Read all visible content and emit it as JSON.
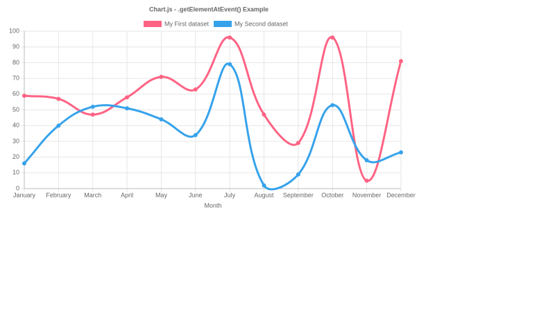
{
  "chart_data": {
    "type": "line",
    "title": "Chart.js - .getElementAtEvent() Example",
    "x_label": "Month",
    "categories": [
      "January",
      "February",
      "March",
      "April",
      "May",
      "June",
      "July",
      "August",
      "September",
      "October",
      "November",
      "December"
    ],
    "series": [
      {
        "name": "My First dataset",
        "color": "#ff6384",
        "values": [
          59,
          57,
          47,
          58,
          71,
          63,
          96,
          47,
          29,
          96,
          5,
          81
        ]
      },
      {
        "name": "My Second dataset",
        "color": "#36a2eb",
        "values": [
          16,
          40,
          52,
          51,
          44,
          34,
          79,
          2,
          9,
          53,
          18,
          23
        ]
      }
    ],
    "ylim": [
      0,
      100
    ],
    "yticks": [
      0,
      10,
      20,
      30,
      40,
      50,
      60,
      70,
      80,
      90,
      100
    ],
    "grid": true,
    "legend": "top"
  }
}
